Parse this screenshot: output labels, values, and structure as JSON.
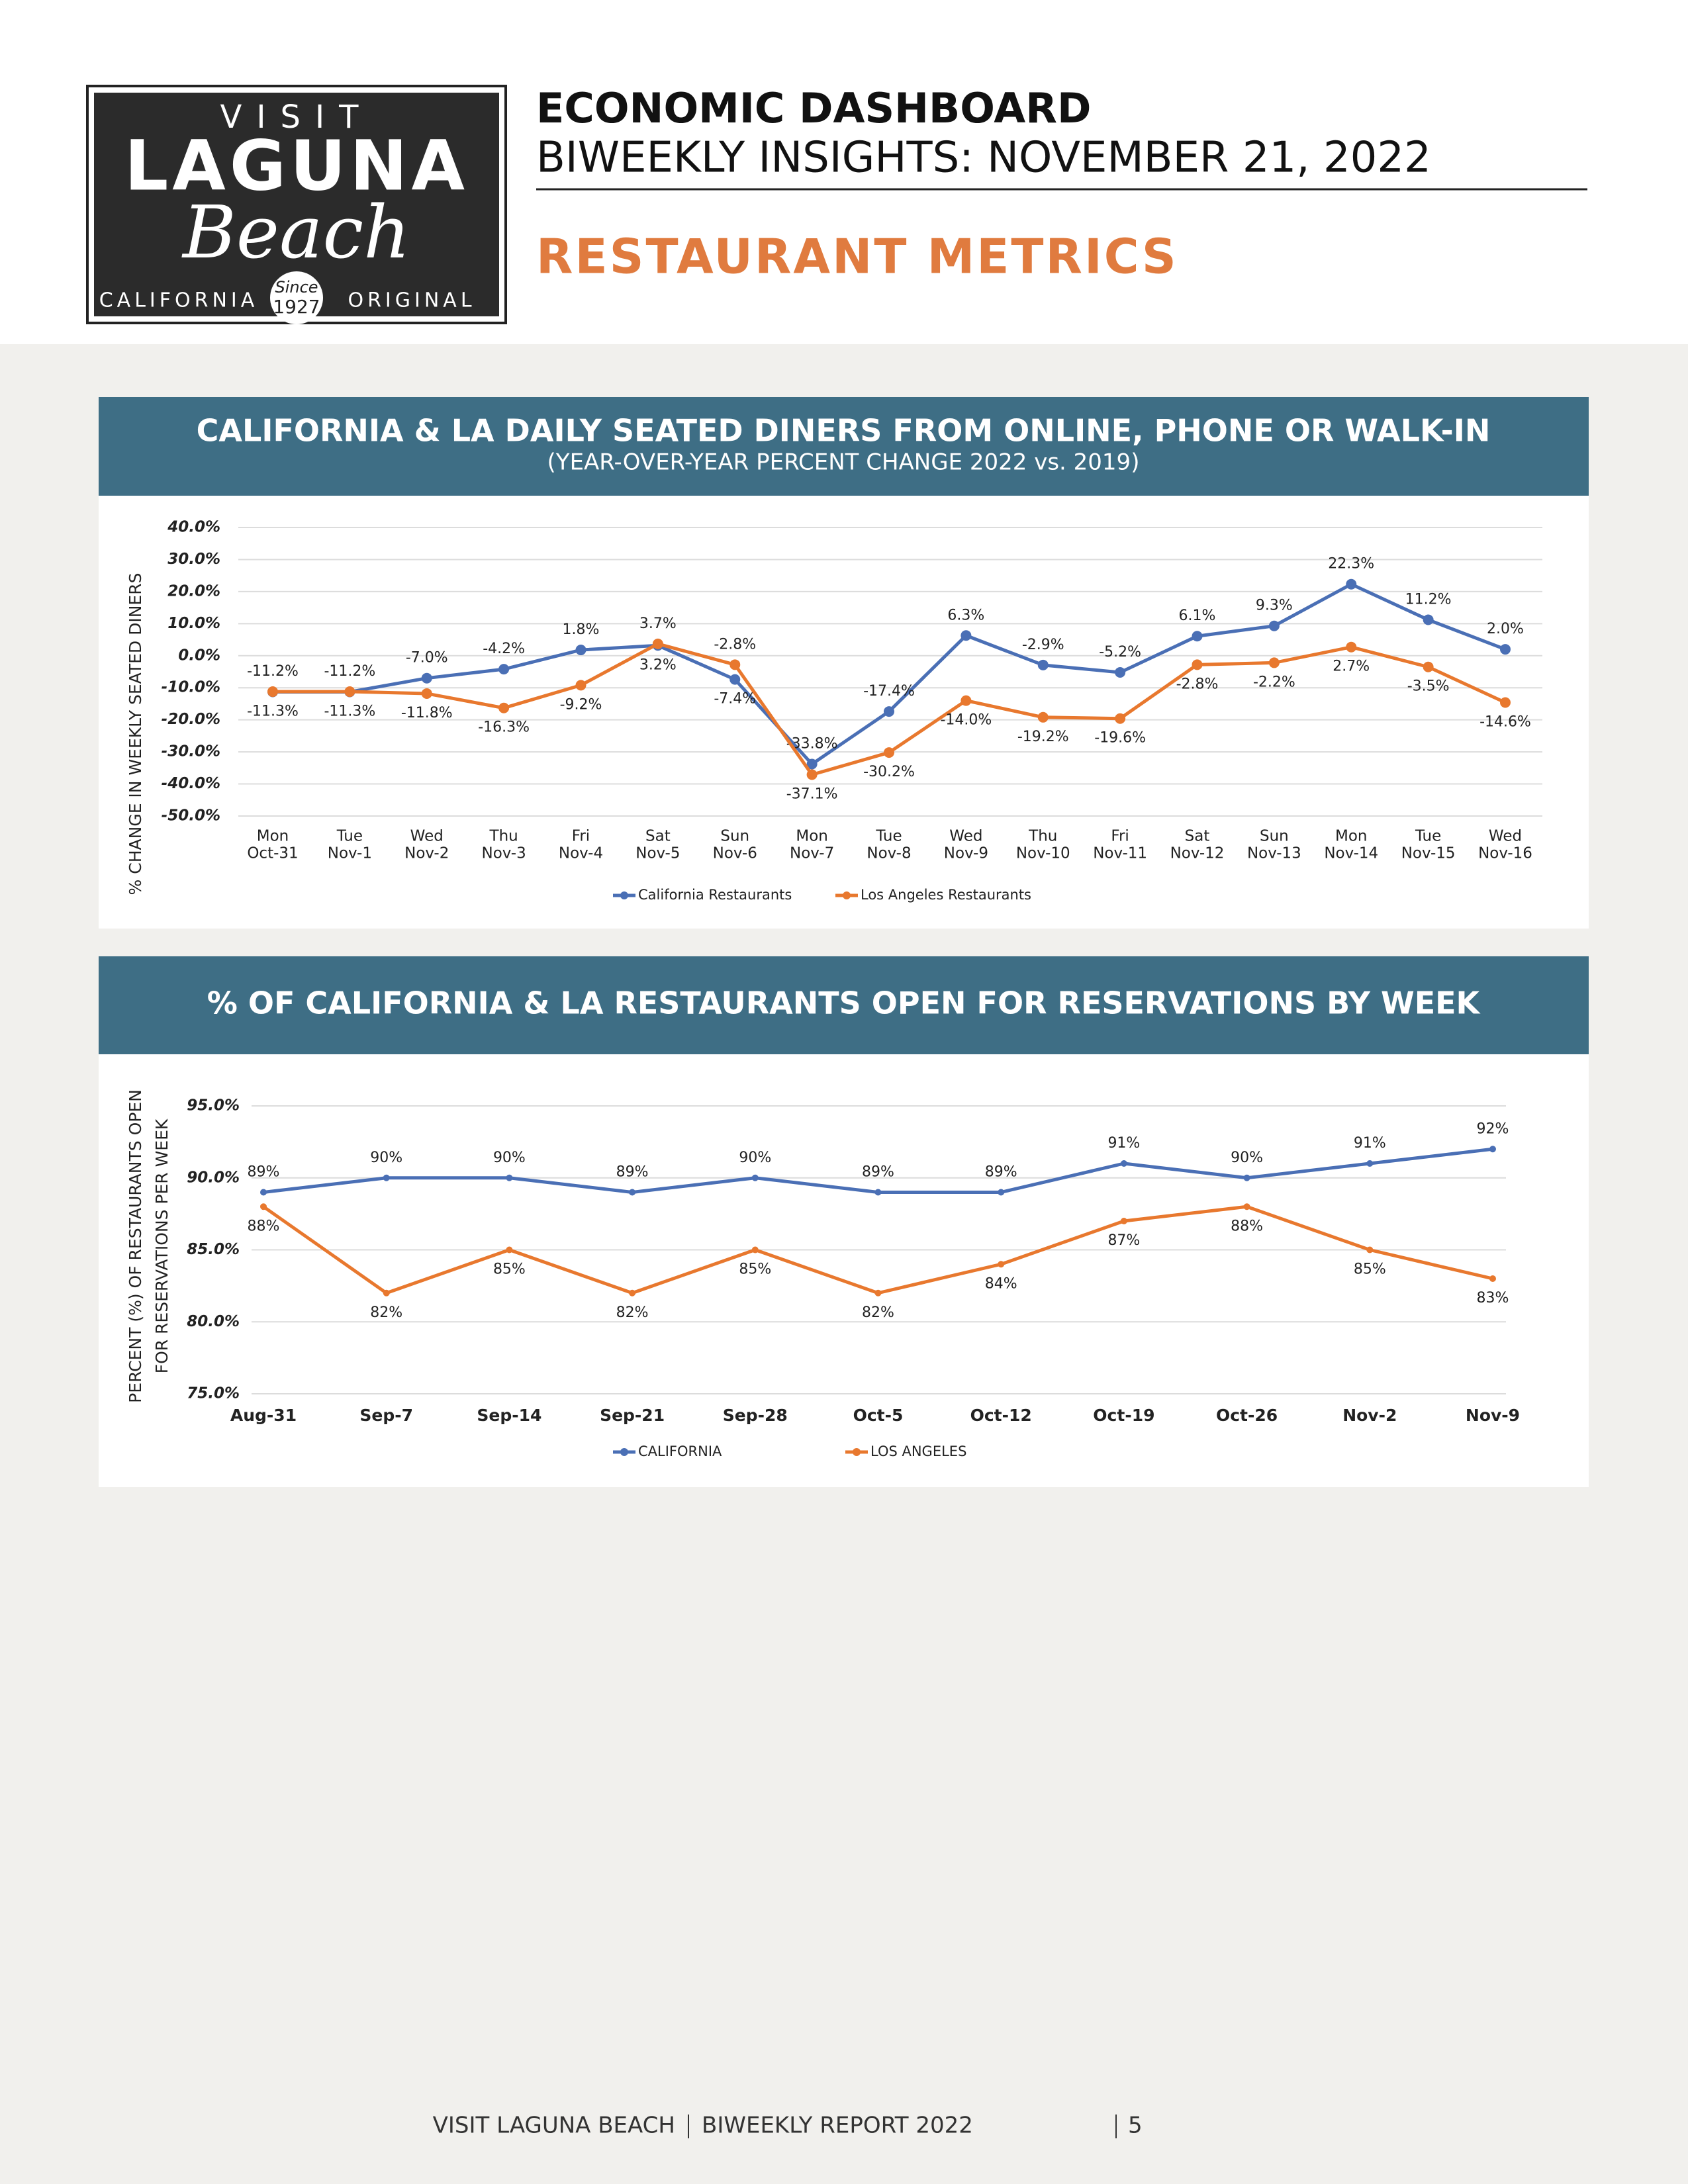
{
  "header": {
    "logo": {
      "top": "VISIT",
      "name": "LAGUNA",
      "script": "Beach",
      "left": "CALIFORNIA",
      "right": "ORIGINAL",
      "since": "Since",
      "year": "1927"
    },
    "title": "ECONOMIC DASHBOARD",
    "subtitle": "BIWEEKLY INSIGHTS: NOVEMBER 21, 2022",
    "section": "RESTAURANT METRICS"
  },
  "chart_data": [
    {
      "type": "line",
      "title": "CALIFORNIA & LA DAILY SEATED DINERS FROM ONLINE, PHONE OR WALK-IN",
      "subtitle": "(YEAR-OVER-YEAR PERCENT CHANGE 2022 vs. 2019)",
      "ylabel": "% CHANGE IN WEEKLY SEATED DINERS",
      "categories": [
        [
          "Mon",
          "Oct-31"
        ],
        [
          "Tue",
          "Nov-1"
        ],
        [
          "Wed",
          "Nov-2"
        ],
        [
          "Thu",
          "Nov-3"
        ],
        [
          "Fri",
          "Nov-4"
        ],
        [
          "Sat",
          "Nov-5"
        ],
        [
          "Sun",
          "Nov-6"
        ],
        [
          "Mon",
          "Nov-7"
        ],
        [
          "Tue",
          "Nov-8"
        ],
        [
          "Wed",
          "Nov-9"
        ],
        [
          "Thu",
          "Nov-10"
        ],
        [
          "Fri",
          "Nov-11"
        ],
        [
          "Sat",
          "Nov-12"
        ],
        [
          "Sun",
          "Nov-13"
        ],
        [
          "Mon",
          "Nov-14"
        ],
        [
          "Tue",
          "Nov-15"
        ],
        [
          "Wed",
          "Nov-16"
        ]
      ],
      "series": [
        {
          "name": "California Restaurants",
          "color": "#4a6fb5",
          "values": [
            -11.3,
            -11.3,
            -7.0,
            -4.2,
            1.8,
            3.2,
            -7.4,
            -33.8,
            -17.4,
            6.3,
            -2.9,
            -5.2,
            6.1,
            9.3,
            22.3,
            11.2,
            2.0
          ],
          "value_labels": [
            "-11.3%",
            "-11.3%",
            "-7.0%",
            "-4.2%",
            "1.8%",
            "3.2%",
            "-7.4%",
            "-33.8%",
            "-17.4%",
            "6.3%",
            "-2.9%",
            "-5.2%",
            "6.1%",
            "9.3%",
            "22.3%",
            "11.2%",
            "2.0%"
          ]
        },
        {
          "name": "Los Angeles Restaurants",
          "color": "#e8782e",
          "values": [
            -11.2,
            -11.2,
            -11.8,
            -16.3,
            -9.2,
            3.7,
            -2.8,
            -37.1,
            -30.2,
            -14.0,
            -19.2,
            -19.6,
            -2.8,
            -2.2,
            2.7,
            -3.5,
            -14.6
          ],
          "value_labels": [
            "-11.2%",
            "-11.2%",
            "-11.8%",
            "-16.3%",
            "-9.2%",
            "3.7%",
            "-2.8%",
            "-37.1%",
            "-30.2%",
            "-14.0%",
            "-19.2%",
            "-19.6%",
            "-2.8%",
            "-2.2%",
            "2.7%",
            "-3.5%",
            "-14.6%"
          ]
        }
      ],
      "ylim": [
        -50,
        40
      ],
      "yticks": [
        {
          "value": 40,
          "label": "40.0%"
        },
        {
          "value": 30,
          "label": "30.0%"
        },
        {
          "value": 20,
          "label": "20.0%"
        },
        {
          "value": 10,
          "label": "10.0%"
        },
        {
          "value": 0,
          "label": "0.0%"
        },
        {
          "value": -10,
          "label": "-10.0%"
        },
        {
          "value": -20,
          "label": "-20.0%"
        },
        {
          "value": -30,
          "label": "-30.0%"
        },
        {
          "value": -40,
          "label": "-40.0%"
        },
        {
          "value": -50,
          "label": "-50.0%"
        }
      ],
      "grid": true,
      "legend": "bottom"
    },
    {
      "type": "line",
      "title": "% OF CALIFORNIA & LA RESTAURANTS OPEN FOR RESERVATIONS BY WEEK",
      "ylabel": [
        "PERCENT (%) OF RESTAURANTS OPEN",
        "FOR RESERVATIONS PER WEEK"
      ],
      "categories": [
        "Aug-31",
        "Sep-7",
        "Sep-14",
        "Sep-21",
        "Sep-28",
        "Oct-5",
        "Oct-12",
        "Oct-19",
        "Oct-26",
        "Nov-2",
        "Nov-9"
      ],
      "series": [
        {
          "name": "CALIFORNIA",
          "color": "#4a6fb5",
          "values": [
            89,
            90,
            90,
            89,
            90,
            89,
            89,
            91,
            90,
            91,
            92
          ],
          "value_labels": [
            "89%",
            "90%",
            "90%",
            "89%",
            "90%",
            "89%",
            "89%",
            "91%",
            "90%",
            "91%",
            "92%"
          ]
        },
        {
          "name": "LOS ANGELES",
          "color": "#e8782e",
          "values": [
            88,
            82,
            85,
            82,
            85,
            82,
            84,
            87,
            88,
            85,
            83
          ],
          "value_labels": [
            "88%",
            "82%",
            "85%",
            "82%",
            "85%",
            "82%",
            "84%",
            "87%",
            "88%",
            "85%",
            "83%"
          ]
        }
      ],
      "ylim": [
        75,
        95
      ],
      "yticks": [
        {
          "value": 95,
          "label": "95.0%"
        },
        {
          "value": 90,
          "label": "90.0%"
        },
        {
          "value": 85,
          "label": "85.0%"
        },
        {
          "value": 80,
          "label": "80.0%"
        },
        {
          "value": 75,
          "label": "75.0%"
        }
      ],
      "grid": true,
      "legend": "bottom"
    }
  ],
  "footer": [
    "VISIT LAGUNA BEACH",
    "BIWEEKLY REPORT 2022",
    "5"
  ]
}
